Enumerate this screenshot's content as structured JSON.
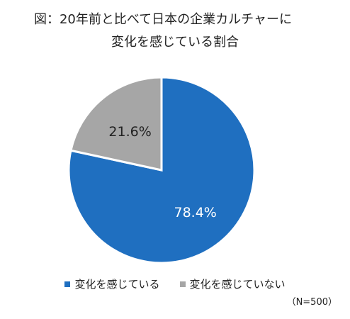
{
  "chart_data": {
    "type": "pie",
    "title_line1": "図：20年前と比べて日本の企業カルチャーに",
    "title_line2": "変化を感じている割合",
    "slices": [
      {
        "label": "変化を感じている",
        "value": 78.4,
        "value_label": "78.4%",
        "color": "#1f6fc0",
        "label_color": "#ffffff"
      },
      {
        "label": "変化を感じていない",
        "value": 21.6,
        "value_label": "21.6%",
        "color": "#a6a6a6",
        "label_color": "#222222"
      }
    ],
    "start": "12 o'clock, clockwise",
    "legend_position": "bottom",
    "note": "（N=500）"
  }
}
